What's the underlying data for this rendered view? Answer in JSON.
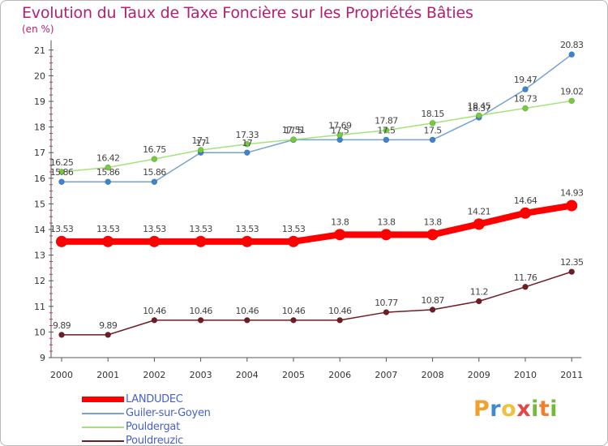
{
  "chart_data": {
    "type": "line",
    "title": "Evolution du Taux de Taxe Foncière sur les Propriétés Bâties",
    "unit_label": "(en %)",
    "xlabel": "",
    "ylabel": "",
    "x": [
      "2000",
      "2001",
      "2002",
      "2003",
      "2004",
      "2005",
      "2006",
      "2007",
      "2008",
      "2009",
      "2010",
      "2011"
    ],
    "ylim": [
      9,
      21
    ],
    "yticks": [
      9,
      10,
      11,
      12,
      13,
      14,
      15,
      16,
      17,
      18,
      19,
      20,
      21
    ],
    "grid": false,
    "legend_position": "bottom-left",
    "series": [
      {
        "name": "LANDUDEC",
        "color": "#ff0000",
        "marker_color": "#ff0000",
        "values": [
          13.53,
          13.53,
          13.53,
          13.53,
          13.53,
          13.53,
          13.8,
          13.8,
          13.8,
          14.21,
          14.64,
          14.93
        ],
        "labels": [
          "13.53",
          "13.53",
          "13.53",
          "13.53",
          "13.53",
          "13.53",
          "13.8",
          "13.8",
          "13.8",
          "14.21",
          "14.64",
          "14.93"
        ]
      },
      {
        "name": "Guiler-sur-Goyen",
        "color": "#74a2d4",
        "marker_color": "#3c84d0",
        "values": [
          15.86,
          15.86,
          15.86,
          17.0,
          17.0,
          17.5,
          17.5,
          17.5,
          17.5,
          18.37,
          19.47,
          20.83
        ],
        "labels": [
          "15.86",
          "15.86",
          "15.86",
          "17",
          "17",
          "17.5",
          "17.5",
          "17.5",
          "17.5",
          "18.37",
          "19.47",
          "20.83"
        ]
      },
      {
        "name": "Pouldergat",
        "color": "#a6e27c",
        "marker_color": "#74cc3a",
        "values": [
          16.25,
          16.42,
          16.75,
          17.1,
          17.33,
          17.51,
          17.69,
          17.87,
          18.15,
          18.45,
          18.73,
          19.02
        ],
        "labels": [
          "16.25",
          "16.42",
          "16.75",
          "17.1",
          "17.33",
          "17.51",
          "17.69",
          "17.87",
          "18.15",
          "18.45",
          "18.73",
          "19.02"
        ]
      },
      {
        "name": "Pouldreuzic",
        "color": "#6e1d24",
        "marker_color": "#6e1d24",
        "values": [
          9.89,
          9.89,
          10.46,
          10.46,
          10.46,
          10.46,
          10.46,
          10.77,
          10.87,
          11.2,
          11.76,
          12.35
        ],
        "labels": [
          "9.89",
          "9.89",
          "10.46",
          "10.46",
          "10.46",
          "10.46",
          "10.46",
          "10.77",
          "10.87",
          "11.2",
          "11.76",
          "12.35"
        ]
      }
    ]
  },
  "logo": {
    "letters": [
      "P",
      "r",
      "o",
      "x",
      "i",
      "t",
      "i"
    ],
    "colors": [
      "#f0a030",
      "#3c8cd0",
      "#f0c040",
      "#e04848",
      "#74b83c",
      "#f08030",
      "#74b83c"
    ]
  }
}
